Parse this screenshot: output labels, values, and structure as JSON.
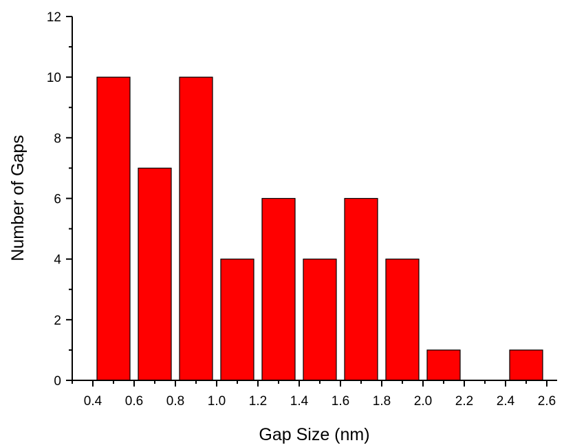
{
  "chart_data": {
    "type": "bar",
    "title": "",
    "xlabel": "Gap Size (nm)",
    "ylabel": "Number of Gaps",
    "xlim": [
      0.3,
      2.65
    ],
    "ylim": [
      0,
      12
    ],
    "bar_color": "#ff0000",
    "bar_width": 0.16,
    "x": [
      0.5,
      0.7,
      0.9,
      1.1,
      1.3,
      1.5,
      1.7,
      1.9,
      2.1,
      2.5
    ],
    "values": [
      10,
      7,
      10,
      4,
      6,
      4,
      6,
      4,
      1,
      1
    ],
    "x_ticks": [
      "0.4",
      "0.6",
      "0.8",
      "1.0",
      "1.2",
      "1.4",
      "1.6",
      "1.8",
      "2.0",
      "2.2",
      "2.4",
      "2.6"
    ],
    "y_ticks": [
      "0",
      "2",
      "4",
      "6",
      "8",
      "10",
      "12"
    ],
    "grid": false,
    "legend": false
  }
}
